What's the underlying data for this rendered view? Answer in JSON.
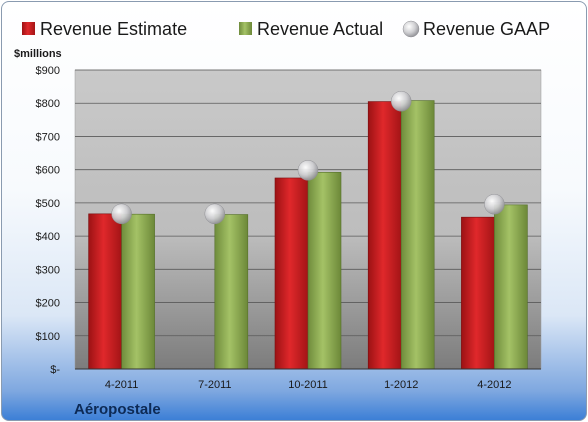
{
  "chart_data": {
    "type": "bar",
    "unit_label": "$millions",
    "company": "Aéropostale",
    "categories": [
      "4-2011",
      "7-2011",
      "10-2011",
      "1-2012",
      "4-2012"
    ],
    "series": [
      {
        "name": "Revenue Estimate",
        "kind": "bar",
        "color": "#cc1f22",
        "values": [
          467,
          null,
          575,
          805,
          457
        ]
      },
      {
        "name": "Revenue Actual",
        "kind": "bar",
        "color": "#8fae55",
        "values": [
          466,
          465,
          592,
          808,
          494
        ]
      },
      {
        "name": "Revenue GAAP",
        "kind": "marker",
        "color": "#c9c9cc",
        "values": [
          467,
          467,
          598,
          806,
          496
        ]
      }
    ],
    "ylim": [
      0,
      900
    ],
    "yticks": [
      0,
      100,
      200,
      300,
      400,
      500,
      600,
      700,
      800,
      900
    ],
    "ytick_labels": [
      "$-",
      "$100",
      "$200",
      "$300",
      "$400",
      "$500",
      "$600",
      "$700",
      "$800",
      "$900"
    ],
    "grid": true,
    "legend_position": "top"
  }
}
